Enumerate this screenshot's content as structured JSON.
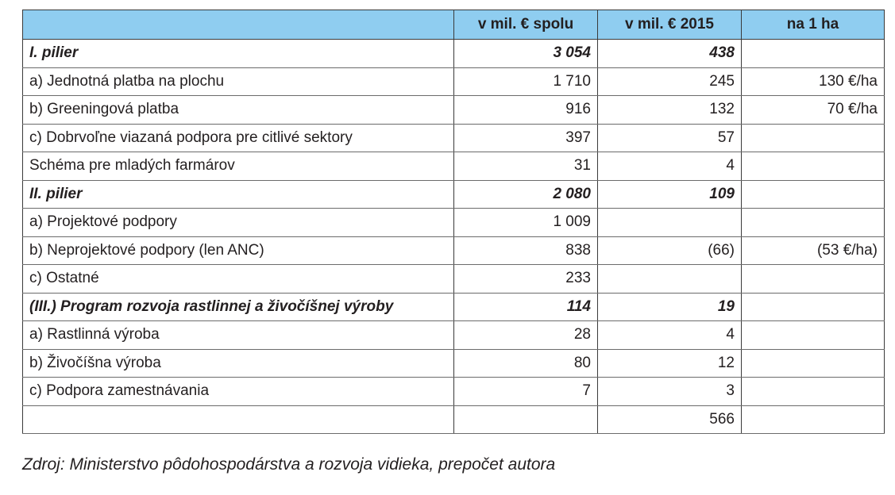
{
  "table": {
    "headers": [
      "",
      "v mil. € spolu",
      "v mil. € 2015",
      "na 1 ha"
    ],
    "rows": [
      {
        "label": "I. pilier",
        "spolu": "3 054",
        "y2015": "438",
        "ha": "",
        "section": true
      },
      {
        "label": "a) Jednotná platba na plochu",
        "spolu": "1 710",
        "y2015": "245",
        "ha": "130 €/ha",
        "section": false
      },
      {
        "label": "b) Greeningová platba",
        "spolu": "916",
        "y2015": "132",
        "ha": "70 €/ha",
        "section": false
      },
      {
        "label": "c) Dobrvoľne viazaná podpora pre citlivé sektory",
        "spolu": "397",
        "y2015": "57",
        "ha": "",
        "section": false
      },
      {
        "label": "Schéma pre mladých farmárov",
        "spolu": "31",
        "y2015": "4",
        "ha": "",
        "section": false
      },
      {
        "label": "II. pilier",
        "spolu": "2 080",
        "y2015": "109",
        "ha": "",
        "section": true
      },
      {
        "label": "a) Projektové podpory",
        "spolu": "1 009",
        "y2015": "",
        "ha": "",
        "section": false
      },
      {
        "label": "b) Neprojektové podpory (len ANC)",
        "spolu": "838",
        "y2015": "(66)",
        "ha": "(53 €/ha)",
        "section": false
      },
      {
        "label": "c) Ostatné",
        "spolu": "233",
        "y2015": "",
        "ha": "",
        "section": false
      },
      {
        "label": "(III.) Program rozvoja rastlinnej a živočíšnej výroby",
        "spolu": "114",
        "y2015": "19",
        "ha": "",
        "section": true
      },
      {
        "label": "a) Rastlinná výroba",
        "spolu": "28",
        "y2015": "4",
        "ha": "",
        "section": false
      },
      {
        "label": "b) Živočíšna výroba",
        "spolu": "80",
        "y2015": "12",
        "ha": "",
        "section": false
      },
      {
        "label": "c) Podpora zamestnávania",
        "spolu": "7",
        "y2015": "3",
        "ha": "",
        "section": false
      },
      {
        "label": "",
        "spolu": "",
        "y2015": "566",
        "ha": "",
        "section": false
      }
    ]
  },
  "source": "Zdroj: Ministerstvo pôdohospodárstva a rozvoja vidieka, prepočet autora",
  "colors": {
    "header_background": "#8fcdf0",
    "border": "#3a3a3a",
    "text": "#231f20"
  }
}
